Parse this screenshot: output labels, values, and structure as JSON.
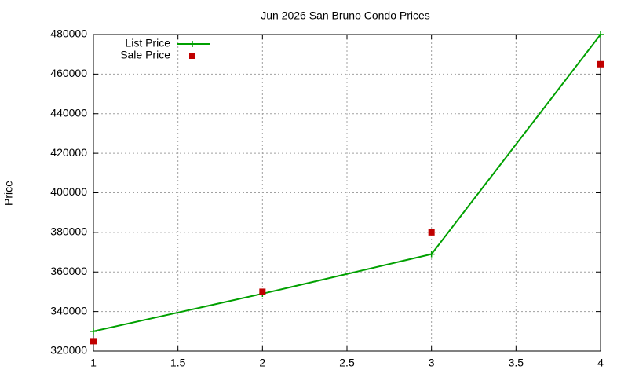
{
  "chart_data": {
    "type": "line",
    "title": "Jun 2026 San Bruno Condo Prices",
    "y_label": "Price",
    "series": [
      {
        "name": "List Price",
        "color": "#00a000",
        "mode": "lines+points",
        "x": [
          1,
          2,
          3,
          4
        ],
        "values": [
          330000,
          349000,
          369000,
          480000
        ]
      },
      {
        "name": "Sale Price",
        "color": "#c00000",
        "mode": "points",
        "x": [
          1,
          2,
          3,
          4
        ],
        "values": [
          325000,
          350000,
          380000,
          465000
        ]
      }
    ],
    "xlim": [
      1,
      4
    ],
    "xticks": [
      1,
      1.5,
      2,
      2.5,
      3,
      3.5,
      4
    ],
    "ylim": [
      320000,
      480000
    ],
    "yticks": [
      320000,
      340000,
      360000,
      380000,
      400000,
      420000,
      440000,
      460000,
      480000
    ],
    "grid": true,
    "legend": "top-left"
  }
}
